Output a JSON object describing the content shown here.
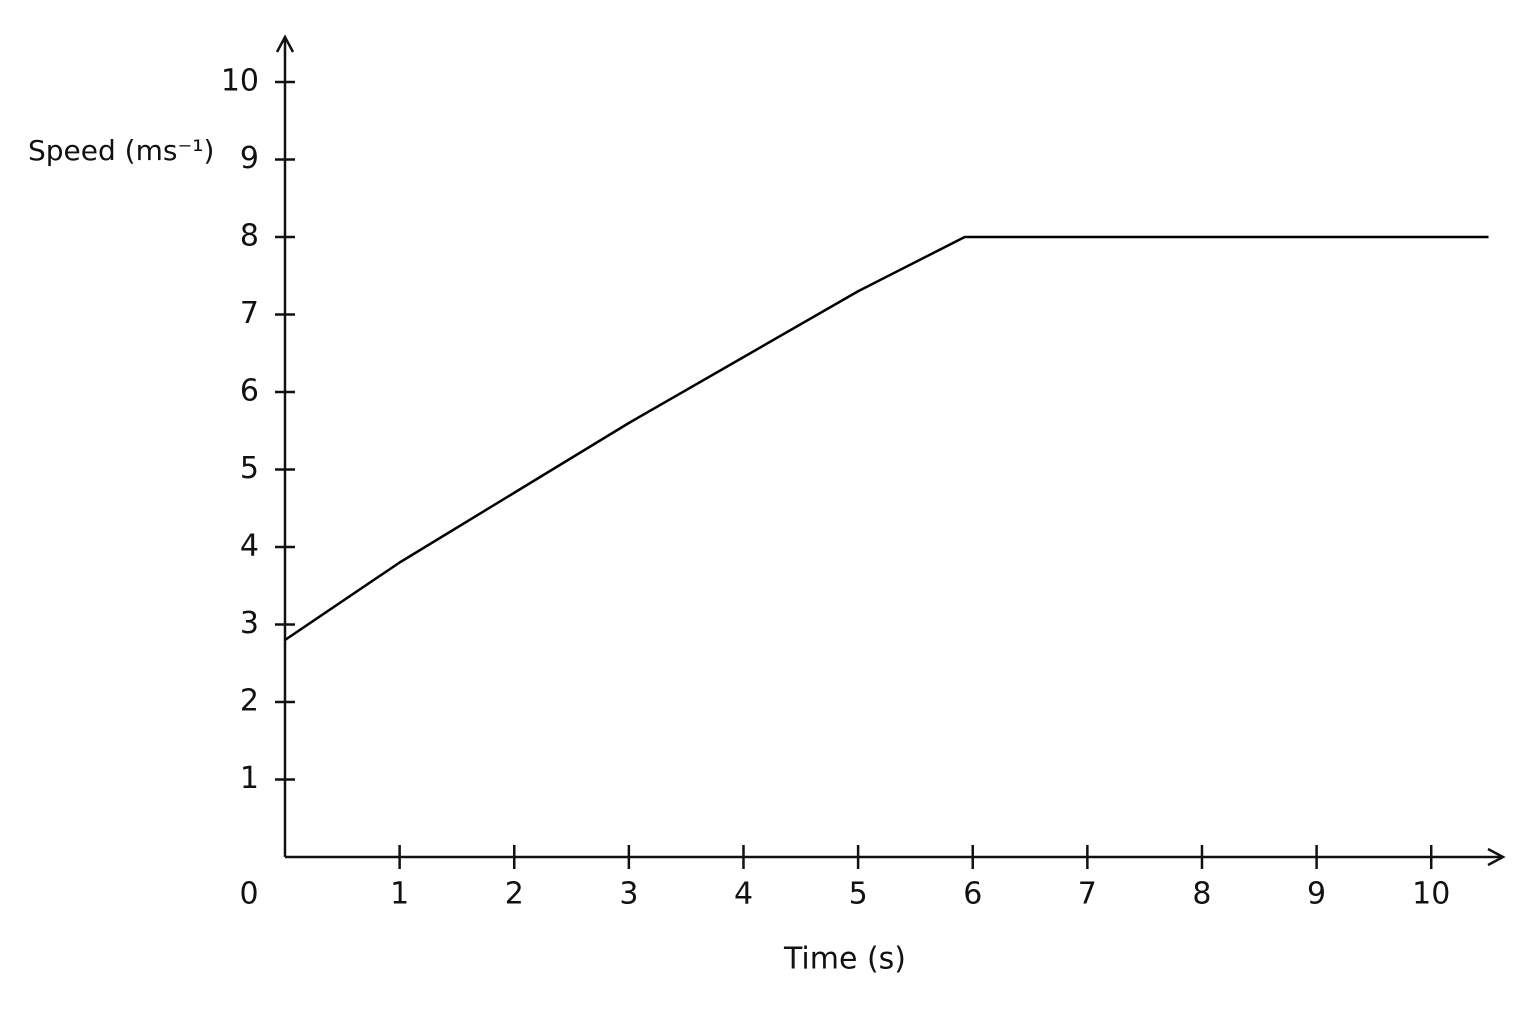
{
  "chart_data": {
    "type": "line",
    "x_label": "Time (s)",
    "y_label": "Speed (ms⁻¹)",
    "x": [
      0,
      1,
      2,
      3,
      4,
      5,
      5.93,
      10.5
    ],
    "series": [
      {
        "color": "#000000",
        "values": [
          2.8,
          3.8,
          4.7,
          5.6,
          6.45,
          7.3,
          8,
          8
        ]
      }
    ],
    "xlim": [
      0,
      10.6
    ],
    "ylim": [
      0,
      10.6
    ],
    "xticks": [
      0,
      1,
      2,
      3,
      4,
      5,
      6,
      7,
      8,
      9,
      10
    ],
    "yticks": [
      1,
      2,
      3,
      4,
      5,
      6,
      7,
      8,
      9,
      10
    ],
    "grid": false
  }
}
